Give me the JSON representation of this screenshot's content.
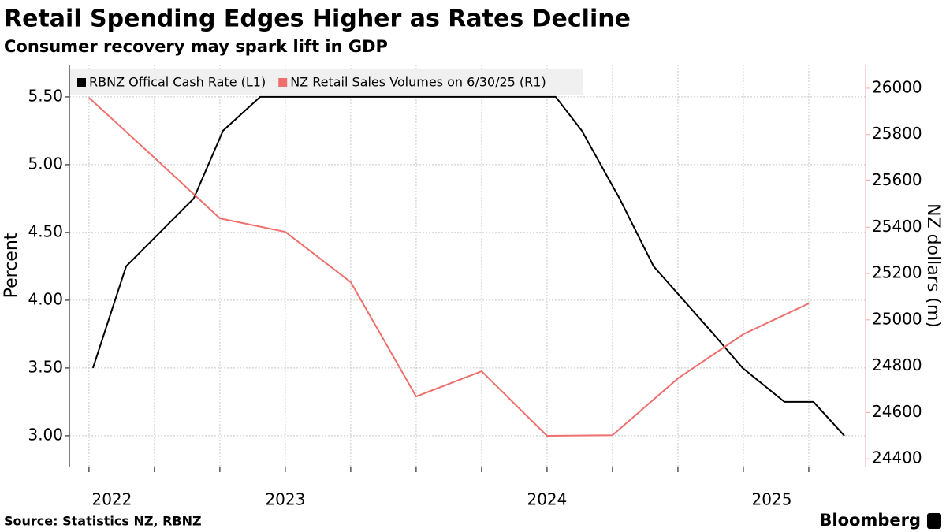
{
  "chart_data": {
    "type": "line",
    "title": "Retail Spending Edges Higher as Rates Decline",
    "subtitle": "Consumer recovery may spark lift in GDP",
    "source": "Source: Statistics NZ, RBNZ",
    "brand": "Bloomberg",
    "ylabel": "Percent",
    "y2label": "NZ dollars (m)",
    "xlim": [
      2022.675,
      2025.717
    ],
    "xticks": [
      2022,
      2023,
      2024,
      2025
    ],
    "xgrid": [
      2022.75,
      2023,
      2023.25,
      2023.5,
      2023.75,
      2024,
      2024.25,
      2024.5,
      2024.75,
      2025,
      2025.25,
      2025.5
    ],
    "ylim": [
      2.767,
      5.738
    ],
    "yticks": [
      {
        "value": 3,
        "label": "3.00"
      },
      {
        "value": 3.5,
        "label": "3.50"
      },
      {
        "value": 4,
        "label": "4.00"
      },
      {
        "value": 4.5,
        "label": "4.50"
      },
      {
        "value": 5,
        "label": "5.00"
      },
      {
        "value": 5.5,
        "label": "5.50"
      }
    ],
    "y2lim": [
      24363,
      26102
    ],
    "y2ticks": [
      24400,
      24600,
      24800,
      25000,
      25200,
      25400,
      25600,
      25800,
      26000
    ],
    "grid": true,
    "legend": "top-left",
    "series": [
      {
        "name": "RBNZ Offical Cash Rate (L1)",
        "color": "#000000",
        "x": [
          2022.765,
          2022.892,
          2023.15,
          2023.262,
          2023.404,
          2024.533,
          2024.633,
          2024.777,
          2024.907,
          2025.136,
          2025.247,
          2025.407,
          2025.518,
          2025.636
        ],
        "values": [
          3.5,
          4.25,
          4.75,
          5.25,
          5.5,
          5.5,
          5.25,
          4.75,
          4.25,
          3.75,
          3.5,
          3.25,
          3.25,
          3.0
        ]
      },
      {
        "name": "NZ Retail Sales Volumes on 6/30/25 (R1)",
        "color": "#ef6f6c",
        "axis": "y2",
        "x": [
          2022.75,
          2023,
          2023.25,
          2023.5,
          2023.75,
          2024,
          2024.25,
          2024.5,
          2024.75,
          2025,
          2025.25,
          2025.5
        ],
        "values": [
          25959,
          25700,
          25438,
          25380,
          25163,
          24669,
          24778,
          24499,
          24502,
          24747,
          24938,
          25071
        ]
      }
    ]
  }
}
